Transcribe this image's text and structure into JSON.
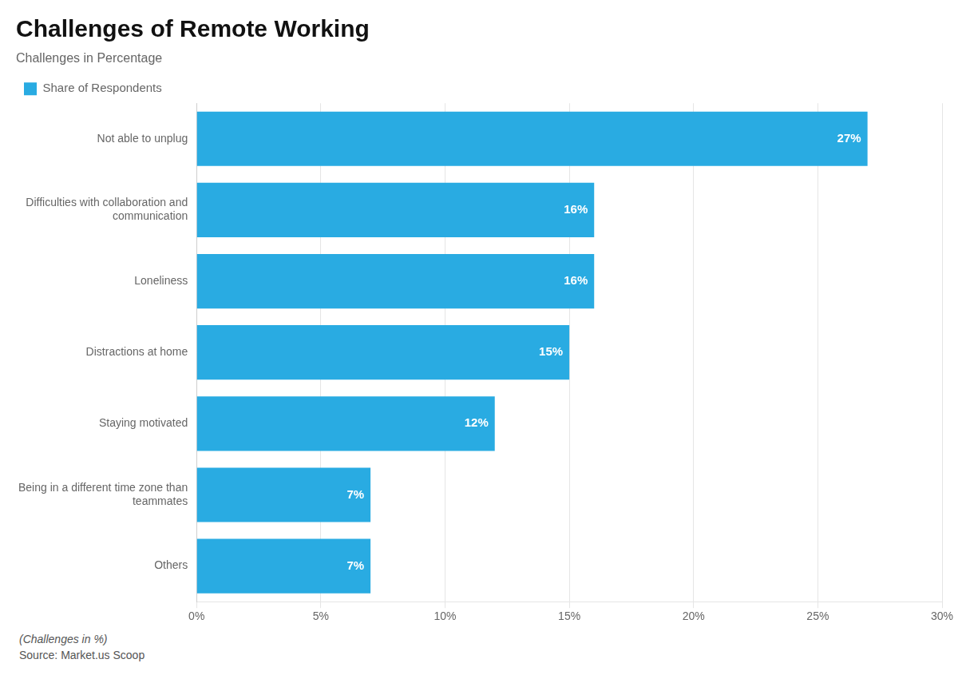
{
  "chart_data": {
    "type": "bar",
    "orientation": "horizontal",
    "title": "Challenges of Remote Working",
    "subtitle": "Challenges in Percentage",
    "categories": [
      "Not able to unplug",
      "Difficulties with collaboration and\ncommunication",
      "Loneliness",
      "Distractions at home",
      "Staying motivated",
      "Being in a different time zone than\nteammates",
      "Others"
    ],
    "series": [
      {
        "name": "Share of Respondents",
        "color": "#29ABE2",
        "values": [
          27,
          16,
          16,
          15,
          12,
          7,
          7
        ],
        "value_labels": [
          "27%",
          "16%",
          "16%",
          "15%",
          "12%",
          "7%",
          "7%"
        ]
      }
    ],
    "xlim": [
      0,
      30
    ],
    "xticks": [
      {
        "value": 0,
        "label": "0%"
      },
      {
        "value": 5,
        "label": "5%"
      },
      {
        "value": 10,
        "label": "10%"
      },
      {
        "value": 15,
        "label": "15%"
      },
      {
        "value": 20,
        "label": "20%"
      },
      {
        "value": 25,
        "label": "25%"
      },
      {
        "value": 30,
        "label": "30%"
      }
    ],
    "grid": true,
    "legend": "upper left",
    "data_labels": true,
    "annotations": [
      "(Challenges in %)",
      "Source: Market.us Scoop"
    ]
  }
}
